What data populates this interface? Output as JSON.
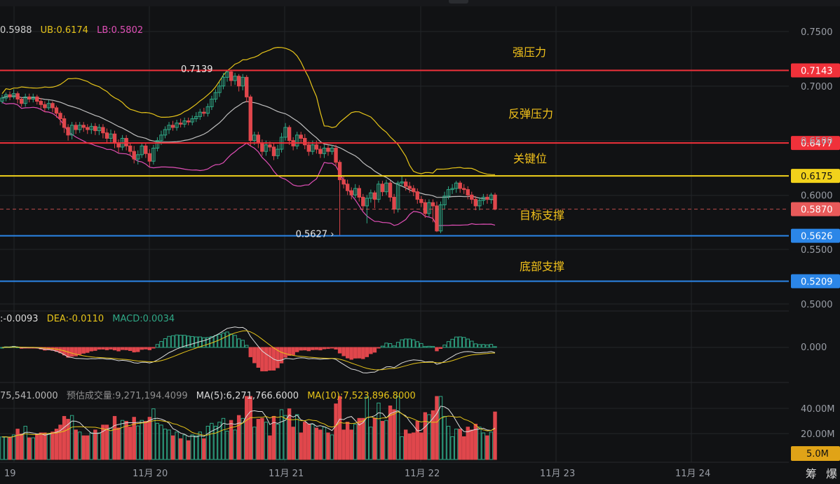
{
  "colors": {
    "background": "#111214",
    "up": "#2fa886",
    "down": "#e0474c",
    "boll_mid": "#bfbfbf",
    "boll_upper": "#e6c419",
    "boll_lower": "#e04fb6",
    "resistance": "#f0313a",
    "key_level": "#f2d21b",
    "support": "#2b86e8",
    "current": "#e85a5a",
    "annotation_text": "#f2c21b"
  },
  "boll_legend": {
    "mid": "0.5988",
    "ub": "UB:0.6174",
    "lb": "LB:0.5802"
  },
  "macd_legend": {
    "dif": ":-0.0093",
    "dea": "DEA:-0.0110",
    "macd": "MACD:0.0034"
  },
  "volume_legend": {
    "vol": "75,541.0000",
    "est": "预估成交量:9,271,194.4099",
    "ma5": "MA(5):6,271,766.6000",
    "ma10": "MA(10):7,523,896.8000"
  },
  "bottom_icons": [
    "筹",
    "爆"
  ],
  "chart_data": {
    "type": "candlestick",
    "x_ticks": [
      "19",
      "11月 20",
      "11月 21",
      "11月 22",
      "11月 23",
      "11月 24"
    ],
    "price_axis": {
      "ticks": [
        "0.7500",
        "0.7000",
        "0.6500",
        "0.6000",
        "0.5500",
        "0.5000"
      ],
      "ylim": [
        0.5,
        0.75
      ]
    },
    "horizontal_levels": [
      {
        "value": "0.7143",
        "label": "强压力",
        "kind": "resistance"
      },
      {
        "value": "0.6477",
        "label": "反弹压力",
        "kind": "resistance"
      },
      {
        "value": "0.6175",
        "label": "关键位",
        "kind": "key"
      },
      {
        "value": "0.5870",
        "label": "目标支撑",
        "kind": "current"
      },
      {
        "value": "0.5626",
        "label": "",
        "kind": "support"
      },
      {
        "value": "0.5209",
        "label": "底部支撑",
        "kind": "support"
      }
    ],
    "high_marker": "0.7139",
    "low_marker": "0.5627",
    "candles": [
      [
        0.686,
        0.689,
        0.684,
        0.692
      ],
      [
        0.689,
        0.692,
        0.686,
        0.694
      ],
      [
        0.692,
        0.69,
        0.687,
        0.695
      ],
      [
        0.69,
        0.693,
        0.688,
        0.697
      ],
      [
        0.693,
        0.688,
        0.684,
        0.695
      ],
      [
        0.688,
        0.684,
        0.681,
        0.69
      ],
      [
        0.684,
        0.69,
        0.681,
        0.693
      ],
      [
        0.69,
        0.688,
        0.685,
        0.693
      ],
      [
        0.688,
        0.69,
        0.685,
        0.693
      ],
      [
        0.69,
        0.686,
        0.683,
        0.692
      ],
      [
        0.686,
        0.683,
        0.679,
        0.689
      ],
      [
        0.683,
        0.68,
        0.676,
        0.686
      ],
      [
        0.68,
        0.684,
        0.678,
        0.687
      ],
      [
        0.684,
        0.68,
        0.676,
        0.686
      ],
      [
        0.68,
        0.675,
        0.671,
        0.682
      ],
      [
        0.675,
        0.67,
        0.664,
        0.677
      ],
      [
        0.67,
        0.662,
        0.657,
        0.673
      ],
      [
        0.662,
        0.655,
        0.65,
        0.665
      ],
      [
        0.655,
        0.664,
        0.651,
        0.667
      ],
      [
        0.664,
        0.66,
        0.656,
        0.667
      ],
      [
        0.66,
        0.664,
        0.657,
        0.667
      ],
      [
        0.664,
        0.662,
        0.658,
        0.667
      ],
      [
        0.662,
        0.66,
        0.656,
        0.665
      ],
      [
        0.66,
        0.663,
        0.656,
        0.666
      ],
      [
        0.663,
        0.659,
        0.655,
        0.666
      ],
      [
        0.659,
        0.662,
        0.655,
        0.665
      ],
      [
        0.662,
        0.657,
        0.652,
        0.665
      ],
      [
        0.657,
        0.652,
        0.648,
        0.661
      ],
      [
        0.652,
        0.656,
        0.648,
        0.66
      ],
      [
        0.656,
        0.648,
        0.643,
        0.659
      ],
      [
        0.648,
        0.644,
        0.639,
        0.651
      ],
      [
        0.644,
        0.652,
        0.641,
        0.655
      ],
      [
        0.652,
        0.645,
        0.641,
        0.655
      ],
      [
        0.645,
        0.64,
        0.636,
        0.648
      ],
      [
        0.64,
        0.633,
        0.629,
        0.645
      ],
      [
        0.633,
        0.637,
        0.628,
        0.641
      ],
      [
        0.637,
        0.645,
        0.634,
        0.648
      ],
      [
        0.645,
        0.638,
        0.634,
        0.648
      ],
      [
        0.638,
        0.631,
        0.626,
        0.642
      ],
      [
        0.631,
        0.643,
        0.628,
        0.646
      ],
      [
        0.643,
        0.65,
        0.64,
        0.653
      ],
      [
        0.65,
        0.655,
        0.646,
        0.659
      ],
      [
        0.655,
        0.66,
        0.652,
        0.663
      ],
      [
        0.66,
        0.664,
        0.656,
        0.667
      ],
      [
        0.664,
        0.662,
        0.659,
        0.668
      ],
      [
        0.662,
        0.666,
        0.659,
        0.669
      ],
      [
        0.666,
        0.665,
        0.662,
        0.67
      ],
      [
        0.665,
        0.668,
        0.662,
        0.671
      ],
      [
        0.668,
        0.667,
        0.664,
        0.671
      ],
      [
        0.667,
        0.67,
        0.664,
        0.673
      ],
      [
        0.67,
        0.672,
        0.667,
        0.676
      ],
      [
        0.672,
        0.676,
        0.669,
        0.679
      ],
      [
        0.676,
        0.675,
        0.672,
        0.68
      ],
      [
        0.675,
        0.681,
        0.672,
        0.684
      ],
      [
        0.681,
        0.688,
        0.678,
        0.691
      ],
      [
        0.688,
        0.694,
        0.685,
        0.697
      ],
      [
        0.694,
        0.7,
        0.69,
        0.704
      ],
      [
        0.7,
        0.708,
        0.697,
        0.712
      ],
      [
        0.708,
        0.713,
        0.704,
        0.714
      ],
      [
        0.713,
        0.705,
        0.7,
        0.714
      ],
      [
        0.705,
        0.709,
        0.701,
        0.712
      ],
      [
        0.709,
        0.7,
        0.695,
        0.711
      ],
      [
        0.7,
        0.708,
        0.696,
        0.711
      ],
      [
        0.708,
        0.69,
        0.685,
        0.71
      ],
      [
        0.69,
        0.65,
        0.645,
        0.692
      ],
      [
        0.65,
        0.655,
        0.646,
        0.658
      ],
      [
        0.655,
        0.648,
        0.643,
        0.658
      ],
      [
        0.648,
        0.64,
        0.636,
        0.651
      ],
      [
        0.64,
        0.646,
        0.636,
        0.65
      ],
      [
        0.646,
        0.644,
        0.64,
        0.649
      ],
      [
        0.644,
        0.636,
        0.632,
        0.648
      ],
      [
        0.636,
        0.642,
        0.633,
        0.646
      ],
      [
        0.642,
        0.653,
        0.639,
        0.657
      ],
      [
        0.653,
        0.662,
        0.65,
        0.666
      ],
      [
        0.662,
        0.65,
        0.646,
        0.664
      ],
      [
        0.65,
        0.645,
        0.641,
        0.653
      ],
      [
        0.645,
        0.655,
        0.642,
        0.658
      ],
      [
        0.655,
        0.652,
        0.648,
        0.658
      ],
      [
        0.652,
        0.646,
        0.642,
        0.656
      ],
      [
        0.646,
        0.64,
        0.636,
        0.649
      ],
      [
        0.64,
        0.646,
        0.637,
        0.65
      ],
      [
        0.646,
        0.642,
        0.638,
        0.65
      ],
      [
        0.642,
        0.638,
        0.634,
        0.645
      ],
      [
        0.638,
        0.643,
        0.634,
        0.646
      ],
      [
        0.643,
        0.64,
        0.636,
        0.646
      ],
      [
        0.64,
        0.643,
        0.637,
        0.646
      ],
      [
        0.643,
        0.63,
        0.626,
        0.646
      ],
      [
        0.63,
        0.614,
        0.563,
        0.632
      ],
      [
        0.614,
        0.61,
        0.606,
        0.617
      ],
      [
        0.61,
        0.604,
        0.6,
        0.614
      ],
      [
        0.604,
        0.6,
        0.596,
        0.607
      ],
      [
        0.6,
        0.606,
        0.597,
        0.61
      ],
      [
        0.606,
        0.598,
        0.594,
        0.609
      ],
      [
        0.598,
        0.59,
        0.586,
        0.601
      ],
      [
        0.59,
        0.597,
        0.574,
        0.6
      ],
      [
        0.597,
        0.602,
        0.593,
        0.605
      ],
      [
        0.602,
        0.596,
        0.588,
        0.604
      ],
      [
        0.596,
        0.61,
        0.593,
        0.613
      ],
      [
        0.61,
        0.603,
        0.599,
        0.613
      ],
      [
        0.603,
        0.611,
        0.6,
        0.614
      ],
      [
        0.611,
        0.598,
        0.594,
        0.613
      ],
      [
        0.598,
        0.587,
        0.583,
        0.601
      ],
      [
        0.587,
        0.611,
        0.584,
        0.613
      ],
      [
        0.611,
        0.612,
        0.608,
        0.617
      ],
      [
        0.612,
        0.608,
        0.604,
        0.615
      ],
      [
        0.608,
        0.606,
        0.602,
        0.612
      ],
      [
        0.606,
        0.603,
        0.599,
        0.609
      ],
      [
        0.603,
        0.596,
        0.592,
        0.606
      ],
      [
        0.596,
        0.593,
        0.589,
        0.599
      ],
      [
        0.593,
        0.583,
        0.579,
        0.596
      ],
      [
        0.583,
        0.593,
        0.58,
        0.596
      ],
      [
        0.593,
        0.59,
        0.575,
        0.596
      ],
      [
        0.59,
        0.567,
        0.566,
        0.594
      ],
      [
        0.567,
        0.591,
        0.565,
        0.594
      ],
      [
        0.591,
        0.599,
        0.587,
        0.603
      ],
      [
        0.599,
        0.605,
        0.596,
        0.608
      ],
      [
        0.605,
        0.606,
        0.601,
        0.61
      ],
      [
        0.606,
        0.611,
        0.602,
        0.613
      ],
      [
        0.611,
        0.606,
        0.602,
        0.613
      ],
      [
        0.606,
        0.605,
        0.601,
        0.61
      ],
      [
        0.605,
        0.6,
        0.596,
        0.608
      ],
      [
        0.6,
        0.596,
        0.592,
        0.603
      ],
      [
        0.596,
        0.59,
        0.586,
        0.599
      ],
      [
        0.59,
        0.595,
        0.586,
        0.598
      ],
      [
        0.595,
        0.598,
        0.591,
        0.601
      ],
      [
        0.598,
        0.596,
        0.592,
        0.601
      ],
      [
        0.596,
        0.6,
        0.592,
        0.602
      ],
      [
        0.6,
        0.587,
        0.586,
        0.602
      ]
    ],
    "volume_axis": {
      "ticks": [
        "40.00M",
        "20.00M"
      ],
      "badge": "5.0M"
    },
    "macd_axis": {
      "ticks": [
        "0.000"
      ]
    }
  }
}
